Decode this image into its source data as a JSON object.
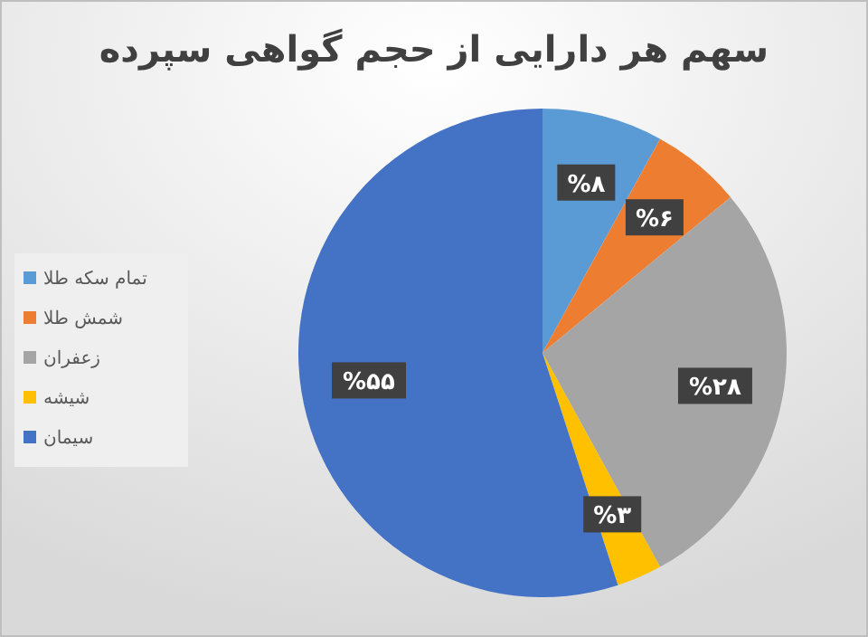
{
  "chart_data": {
    "type": "pie",
    "title": "سهم هر دارایی از حجم گواهی سپرده",
    "categories": [
      "تمام سکه طلا",
      "شمش طلا",
      "زعفران",
      "شیشه",
      "سیمان"
    ],
    "values": [
      8,
      6,
      28,
      3,
      55
    ],
    "colors": [
      "#5b9bd5",
      "#ed7d31",
      "#a5a5a5",
      "#ffc000",
      "#4472c4"
    ],
    "value_labels": [
      "%۸",
      "%۶",
      "%۲۸",
      "%۳",
      "%۵۵"
    ],
    "legend": "left"
  }
}
